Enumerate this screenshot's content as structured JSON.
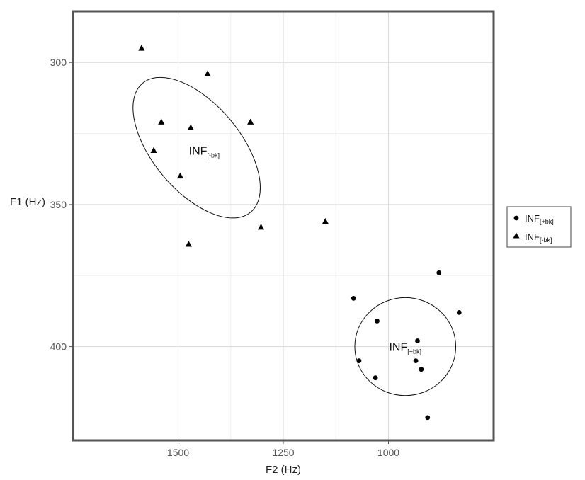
{
  "chart_data": {
    "type": "scatter",
    "xlabel": "F2 (Hz)",
    "ylabel": "F1 (Hz)",
    "x_reversed": true,
    "y_reversed": true,
    "xlim": [
      1750,
      750
    ],
    "ylim": [
      282,
      433
    ],
    "x_ticks": [
      1500,
      1250,
      1000
    ],
    "y_ticks": [
      300,
      350,
      400
    ],
    "x_tick_labels": [
      "1500",
      "1250",
      "1000"
    ],
    "y_tick_labels": [
      "300",
      "350",
      "400"
    ],
    "grid": true,
    "legend_position": "right",
    "series": [
      {
        "name_main": "INF",
        "name_sub": "[+bk]",
        "marker": "circle",
        "points": [
          {
            "x": 880,
            "y": 374
          },
          {
            "x": 1083,
            "y": 383
          },
          {
            "x": 832,
            "y": 388
          },
          {
            "x": 1027,
            "y": 391
          },
          {
            "x": 931,
            "y": 398
          },
          {
            "x": 1070,
            "y": 405
          },
          {
            "x": 935,
            "y": 405
          },
          {
            "x": 922,
            "y": 408
          },
          {
            "x": 1031,
            "y": 411
          },
          {
            "x": 907,
            "y": 425
          }
        ]
      },
      {
        "name_main": "INF",
        "name_sub": "[-bk]",
        "marker": "triangle",
        "points": [
          {
            "x": 1587,
            "y": 295
          },
          {
            "x": 1430,
            "y": 304
          },
          {
            "x": 1540,
            "y": 321
          },
          {
            "x": 1470,
            "y": 323
          },
          {
            "x": 1328,
            "y": 321
          },
          {
            "x": 1558,
            "y": 331
          },
          {
            "x": 1495,
            "y": 340
          },
          {
            "x": 1303,
            "y": 358
          },
          {
            "x": 1150,
            "y": 356
          },
          {
            "x": 1475,
            "y": 364
          }
        ]
      }
    ],
    "ellipses": [
      {
        "series": 0,
        "cx": 960,
        "cy": 400,
        "rx_hz": 120,
        "ry_f1": 20,
        "angle": 0
      },
      {
        "series": 1,
        "cx": 1456,
        "cy": 330,
        "rx_hz": 200,
        "ry_f1": 20,
        "angle": 50
      }
    ],
    "annotations": [
      {
        "main": "INF",
        "sub": "[-bk]",
        "x": 1438,
        "y": 331
      },
      {
        "main": "INF",
        "sub": "[+bk]",
        "x": 960,
        "y": 400
      }
    ]
  }
}
